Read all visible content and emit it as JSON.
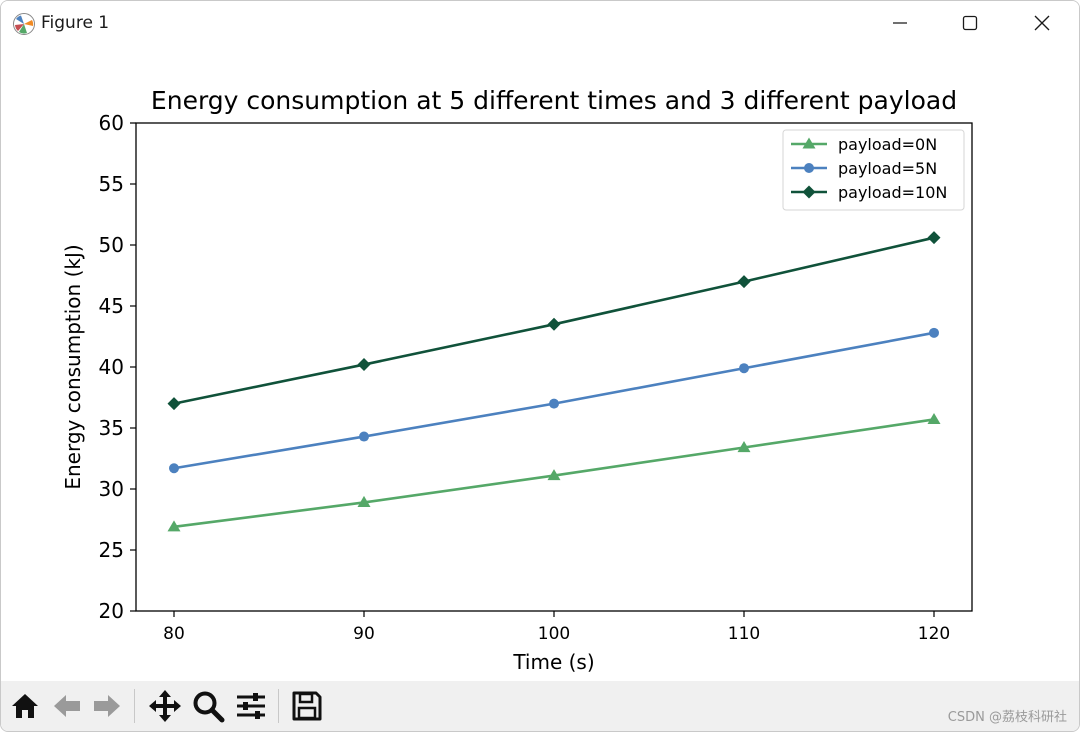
{
  "window": {
    "title": "Figure 1",
    "controls": [
      "minimize",
      "maximize",
      "close"
    ]
  },
  "chart_data": {
    "type": "line",
    "title": "Energy consumption at 5 different times and 3 different payload",
    "xlabel": "Time (s)",
    "ylabel": "Energy consumption (kJ)",
    "x": [
      80,
      90,
      100,
      110,
      120
    ],
    "xlim": [
      78,
      122
    ],
    "ylim": [
      20,
      60
    ],
    "xticks": [
      "80",
      "90",
      "100",
      "110",
      "120"
    ],
    "yticks": [
      "20",
      "25",
      "30",
      "35",
      "40",
      "45",
      "50",
      "55",
      "60"
    ],
    "grid": false,
    "legend_position": "top-right",
    "series": [
      {
        "name": "payload=0N",
        "values": [
          26.9,
          28.9,
          31.1,
          33.4,
          35.7
        ],
        "color": "#55a868",
        "marker": "triangle"
      },
      {
        "name": "payload=5N",
        "values": [
          31.7,
          34.3,
          37.0,
          39.9,
          42.8
        ],
        "color": "#4c81bf",
        "marker": "circle"
      },
      {
        "name": "payload=10N",
        "values": [
          37.0,
          40.2,
          43.5,
          47.0,
          50.6
        ],
        "color": "#10523a",
        "marker": "diamond"
      }
    ]
  },
  "toolbar": {
    "buttons": [
      "home-icon",
      "back-icon",
      "forward-icon",
      "pan-icon",
      "zoom-icon",
      "configure-subplots-icon",
      "save-icon"
    ]
  },
  "watermark": "CSDN @荔枝科研社"
}
